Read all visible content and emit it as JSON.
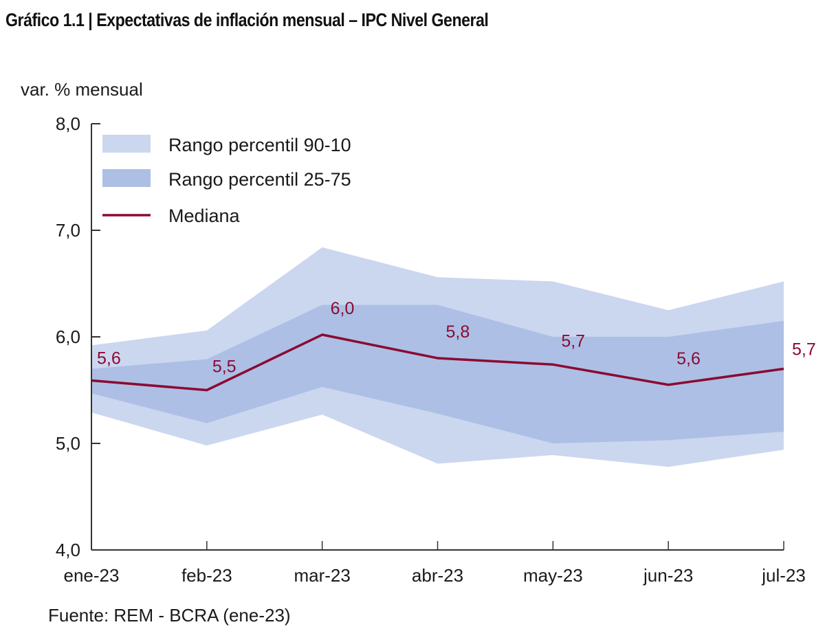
{
  "chart_data": {
    "type": "area",
    "title": "Gráfico 1.1 | Expectativas de inflación mensual – IPC Nivel General",
    "ylabel": "var. % mensual",
    "xlabel": "",
    "source": "Fuente: REM - BCRA (ene-23)",
    "ylim": [
      4.0,
      8.0
    ],
    "yticks": [
      4.0,
      5.0,
      6.0,
      7.0,
      8.0
    ],
    "ytick_labels": [
      "4,0",
      "5,0",
      "6,0",
      "7,0",
      "8,0"
    ],
    "categories": [
      "ene-23",
      "feb-23",
      "mar-23",
      "abr-23",
      "may-23",
      "jun-23",
      "jul-23"
    ],
    "grid": false,
    "legend_position": "top-left",
    "series": [
      {
        "name": "Rango percentil 90-10",
        "kind": "band",
        "color": "#cbd7ef",
        "upper": [
          5.92,
          6.06,
          6.84,
          6.56,
          6.52,
          6.25,
          6.52
        ],
        "lower": [
          5.29,
          4.98,
          5.27,
          4.81,
          4.89,
          4.78,
          4.94
        ]
      },
      {
        "name": "Rango percentil 25-75",
        "kind": "band",
        "color": "#adbfe5",
        "upper": [
          5.7,
          5.79,
          6.3,
          6.3,
          6.0,
          6.0,
          6.15
        ],
        "lower": [
          5.47,
          5.19,
          5.53,
          5.28,
          5.0,
          5.03,
          5.11
        ]
      },
      {
        "name": "Mediana",
        "kind": "line",
        "color": "#8b0a32",
        "values": [
          5.59,
          5.5,
          6.02,
          5.8,
          5.74,
          5.55,
          5.7
        ],
        "labels": [
          "5,6",
          "5,5",
          "6,0",
          "5,8",
          "5,7",
          "5,6",
          "5,7"
        ]
      }
    ]
  }
}
